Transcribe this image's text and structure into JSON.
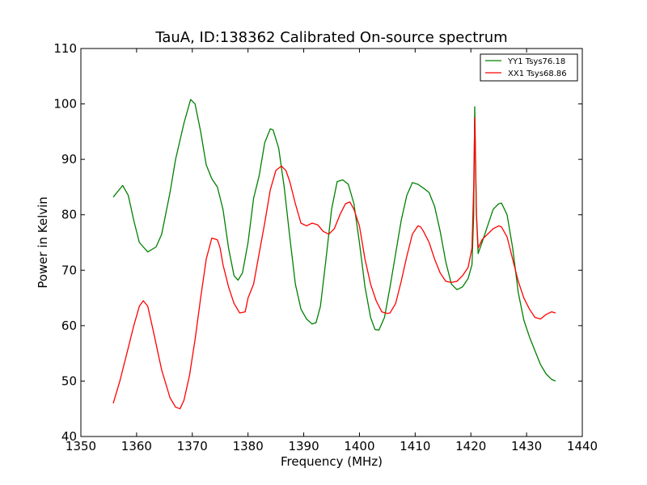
{
  "chart_data": {
    "type": "line",
    "title": "TauA, ID:138362 Calibrated On-source spectrum",
    "xlabel": "Frequency (MHz)",
    "ylabel": "Power in Kelvin",
    "xlim": [
      1350,
      1440
    ],
    "ylim": [
      40,
      110
    ],
    "xticks": [
      1350,
      1360,
      1370,
      1380,
      1390,
      1400,
      1410,
      1420,
      1430,
      1440
    ],
    "yticks": [
      40,
      50,
      60,
      70,
      80,
      90,
      100,
      110
    ],
    "grid": false,
    "legend_position": "top-right",
    "series": [
      {
        "name": "YY1 Tsys76.18",
        "color": "#008000",
        "x": [
          1355.8,
          1357.5,
          1358.5,
          1359.5,
          1360.5,
          1362,
          1363.5,
          1364.5,
          1366,
          1367,
          1368.5,
          1369.7,
          1370.5,
          1371.5,
          1372.5,
          1373.5,
          1374.5,
          1375.5,
          1376.5,
          1377.5,
          1378.2,
          1379,
          1380,
          1381,
          1382,
          1383,
          1384,
          1384.5,
          1385.5,
          1386.5,
          1387.5,
          1388.5,
          1389.5,
          1390.5,
          1391.5,
          1392.2,
          1393,
          1394,
          1395,
          1396,
          1397,
          1398,
          1399,
          1400,
          1401,
          1402,
          1402.8,
          1403.5,
          1404.5,
          1405.5,
          1406.5,
          1407.5,
          1408.5,
          1409.5,
          1410.5,
          1411.5,
          1412.5,
          1413.5,
          1414.5,
          1415.5,
          1416.5,
          1417.5,
          1418.5,
          1419.5,
          1420.2,
          1420.5,
          1420.7,
          1421.0,
          1421.3,
          1422,
          1423,
          1424,
          1425,
          1425.5,
          1426.5,
          1427.5,
          1428.5,
          1429.5,
          1430.5,
          1431.5,
          1432.5,
          1433.5,
          1434.5,
          1435.2
        ],
        "values": [
          83.2,
          85.3,
          83.5,
          79,
          75,
          73.3,
          74.2,
          76.5,
          84,
          90,
          96.5,
          100.8,
          100,
          95,
          89,
          86.5,
          85,
          81,
          74,
          69,
          68.2,
          69.5,
          75,
          83,
          87,
          93,
          95.5,
          95.3,
          92,
          85,
          76,
          67.5,
          63,
          61.2,
          60.3,
          60.5,
          63.5,
          72,
          81,
          86,
          86.3,
          85.5,
          82,
          75,
          67,
          61.5,
          59.3,
          59.2,
          61.5,
          67,
          73,
          79,
          83.5,
          85.8,
          85.5,
          84.8,
          84,
          81.5,
          77,
          71.5,
          67.5,
          66.5,
          67,
          68.5,
          71,
          80,
          99.5,
          80,
          73,
          75,
          78,
          81,
          82,
          82.1,
          80,
          74,
          66,
          61,
          58,
          55.5,
          53,
          51.3,
          50.3,
          50
        ]
      },
      {
        "name": "XX1 Tsys68.86",
        "color": "#ff0000",
        "x": [
          1355.8,
          1357,
          1358.5,
          1359.5,
          1360.5,
          1361.2,
          1362,
          1363,
          1364.5,
          1366,
          1367,
          1367.8,
          1368.5,
          1369.5,
          1370.5,
          1371.5,
          1372.5,
          1373.5,
          1374.5,
          1375,
          1375.5,
          1376.5,
          1377.5,
          1378.5,
          1379.5,
          1380,
          1381,
          1382,
          1383,
          1384,
          1385,
          1386,
          1386.8,
          1387.5,
          1388.5,
          1389.5,
          1390.5,
          1391.5,
          1392.5,
          1393.5,
          1394.5,
          1395.5,
          1396.5,
          1397.5,
          1398.3,
          1399,
          1400,
          1401,
          1402,
          1403,
          1404,
          1405,
          1405.5,
          1406.5,
          1407.5,
          1408.5,
          1409.5,
          1410.5,
          1411,
          1411.5,
          1412.5,
          1413.5,
          1414.5,
          1415.5,
          1416.5,
          1417.5,
          1418.5,
          1419.5,
          1420.2,
          1420.5,
          1420.7,
          1421.0,
          1421.3,
          1422,
          1423,
          1424,
          1425,
          1425.5,
          1426.5,
          1427.5,
          1428.5,
          1429.5,
          1430.5,
          1431.5,
          1432.5,
          1433.5,
          1434.5,
          1435.2
        ],
        "values": [
          46,
          50,
          56,
          60,
          63.5,
          64.5,
          63.5,
          59,
          52,
          47,
          45.3,
          45,
          46.5,
          51,
          57.5,
          65,
          72,
          75.8,
          75.5,
          74,
          71,
          67,
          64,
          62.3,
          62.5,
          65,
          67.5,
          73,
          78.5,
          84.5,
          88,
          88.8,
          88,
          86,
          82,
          78.5,
          78,
          78.5,
          78.2,
          77,
          76.5,
          77.5,
          80,
          82,
          82.3,
          81,
          78,
          72,
          67.5,
          64.5,
          62.5,
          62.2,
          62.3,
          64,
          68,
          72.5,
          76.5,
          78,
          77.8,
          77,
          75,
          72,
          69.5,
          68,
          67.8,
          68,
          69,
          70.5,
          74,
          85,
          97.5,
          80,
          74,
          75.5,
          76.5,
          77.5,
          78,
          77.8,
          76,
          72,
          68,
          65,
          63,
          61.5,
          61.2,
          62,
          62.5,
          62.3
        ]
      }
    ]
  }
}
